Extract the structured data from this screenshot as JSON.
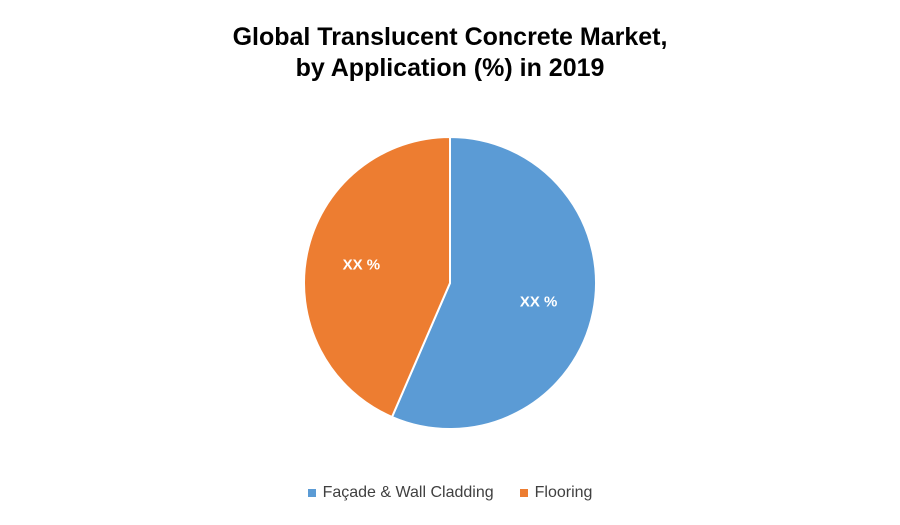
{
  "chart_data": {
    "type": "pie",
    "title_lines": [
      "Global Translucent Concrete Market,",
      "by Application (%) in 2019"
    ],
    "slices": [
      {
        "name": "Façade & Wall Cladding",
        "value": 56.5,
        "label": "XX %",
        "color": "#5B9BD5"
      },
      {
        "name": "Flooring",
        "value": 43.5,
        "label": "XX %",
        "color": "#ED7D31"
      }
    ],
    "legend_placement": "bottom"
  }
}
